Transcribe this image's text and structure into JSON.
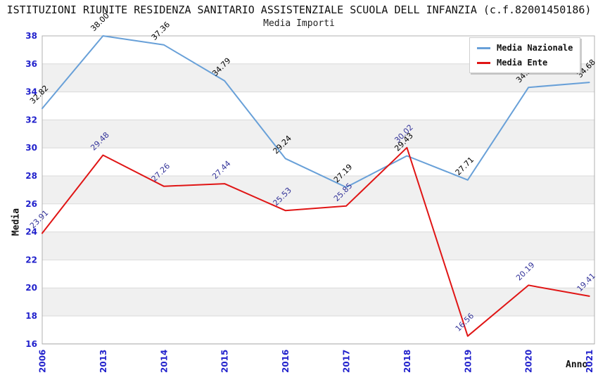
{
  "header": {
    "title": "ISTITUZIONI RIUNITE RESIDENZA SANITARIO ASSISTENZIALE SCUOLA DELL INFANZIA (c.f.82001450186)",
    "subtitle": "Media Importi"
  },
  "chart_data": {
    "type": "line",
    "title": "Media Importi",
    "xlabel": "Anno",
    "ylabel": "Media",
    "x": [
      "2006",
      "2013",
      "2014",
      "2015",
      "2016",
      "2017",
      "2018",
      "2019",
      "2020",
      "2021"
    ],
    "series": [
      {
        "name": "Media Nazionale",
        "color": "#68a0d8",
        "label_color": "#000000",
        "values": [
          32.82,
          38.0,
          37.36,
          34.79,
          29.24,
          27.19,
          29.43,
          27.71,
          34.32,
          34.68
        ]
      },
      {
        "name": "Media Ente",
        "color": "#e01515",
        "label_color": "#333399",
        "values": [
          23.91,
          29.48,
          27.26,
          27.44,
          25.53,
          25.85,
          30.02,
          16.56,
          20.19,
          19.41
        ]
      }
    ],
    "ylim": [
      16,
      38
    ],
    "ytick_step": 2,
    "grid": "horizontal-bands",
    "legend_position": "top-right",
    "style": {
      "tick_color": "#2222cc",
      "band_color": "#f0f0f0",
      "gridline_color": "#dadada",
      "border_color": "#b0b0b0",
      "value_label_decimals": 2
    }
  }
}
